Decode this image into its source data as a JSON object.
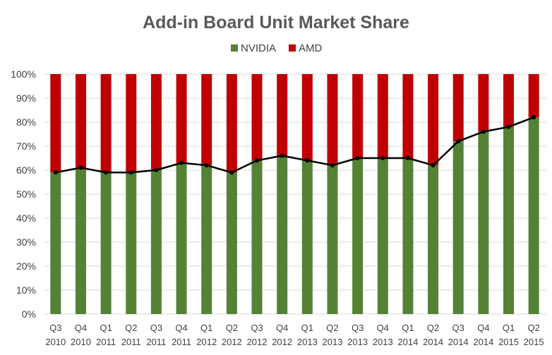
{
  "chart_data": {
    "type": "bar",
    "stacked": true,
    "title": "Add-in Board Unit Market Share",
    "xlabel": "",
    "ylabel": "",
    "ylim": [
      0,
      100
    ],
    "y_ticks": [
      "0%",
      "10%",
      "20%",
      "30%",
      "40%",
      "50%",
      "60%",
      "70%",
      "80%",
      "90%",
      "100%"
    ],
    "grid": true,
    "legend": "top",
    "categories": [
      [
        "Q3",
        "2010"
      ],
      [
        "Q4",
        "2010"
      ],
      [
        "Q1",
        "2011"
      ],
      [
        "Q2",
        "2011"
      ],
      [
        "Q3",
        "2011"
      ],
      [
        "Q4",
        "2011"
      ],
      [
        "Q1",
        "2012"
      ],
      [
        "Q2",
        "2012"
      ],
      [
        "Q3",
        "2012"
      ],
      [
        "Q4",
        "2012"
      ],
      [
        "Q1",
        "2013"
      ],
      [
        "Q2",
        "2013"
      ],
      [
        "Q3",
        "2013"
      ],
      [
        "Q4",
        "2013"
      ],
      [
        "Q1",
        "2014"
      ],
      [
        "Q2",
        "2014"
      ],
      [
        "Q3",
        "2014"
      ],
      [
        "Q4",
        "2014"
      ],
      [
        "Q1",
        "2015"
      ],
      [
        "Q2",
        "2015"
      ]
    ],
    "series": [
      {
        "name": "NVIDIA",
        "color": "#548235",
        "values": [
          59,
          61,
          59,
          59,
          60,
          63,
          62,
          59,
          64,
          66,
          64,
          62,
          65,
          65,
          65,
          62,
          72,
          76,
          78,
          82
        ]
      },
      {
        "name": "AMD",
        "color": "#c00000",
        "values": [
          41,
          39,
          41,
          41,
          40,
          37,
          38,
          41,
          36,
          34,
          36,
          38,
          35,
          35,
          35,
          38,
          28,
          24,
          22,
          18
        ]
      }
    ],
    "line_overlay": {
      "series": "NVIDIA",
      "color": "#000000"
    }
  }
}
